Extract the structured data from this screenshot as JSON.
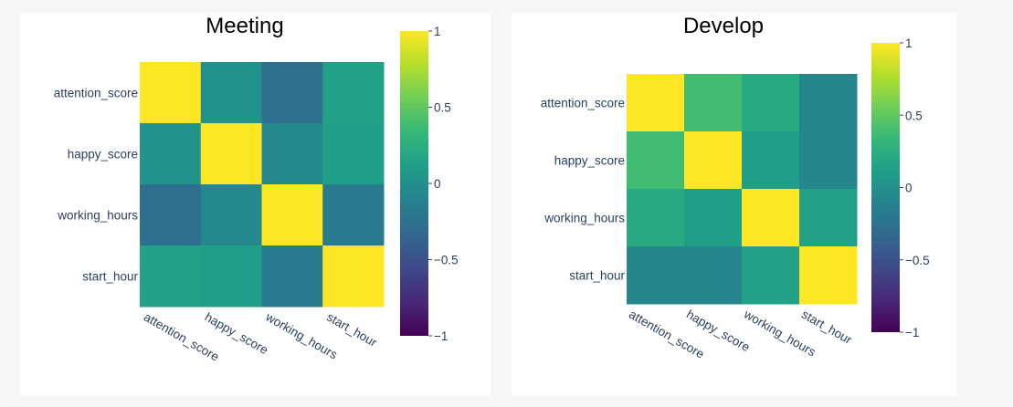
{
  "colorscale": [
    "#440154",
    "#482878",
    "#3e4989",
    "#31688e",
    "#26828e",
    "#1f9e89",
    "#35b779",
    "#6ece58",
    "#b5de2b",
    "#fde725"
  ],
  "chart_data": [
    {
      "type": "heatmap",
      "title": "Meeting",
      "categories": [
        "attention_score",
        "happy_score",
        "working_hours",
        "start_hour"
      ],
      "z": [
        [
          1.0,
          0.02,
          -0.28,
          0.14
        ],
        [
          0.02,
          1.0,
          -0.06,
          0.12
        ],
        [
          -0.28,
          -0.06,
          1.0,
          -0.18
        ],
        [
          0.14,
          0.12,
          -0.18,
          1.0
        ]
      ],
      "zlim": [
        -1,
        1
      ],
      "colorbar_ticks": [
        "1",
        "0.5",
        "0",
        "−0.5",
        "−1"
      ],
      "colorbar_values": [
        1,
        0.5,
        0,
        -0.5,
        -1
      ]
    },
    {
      "type": "heatmap",
      "title": "Develop",
      "categories": [
        "attention_score",
        "happy_score",
        "working_hours",
        "start_hour"
      ],
      "z": [
        [
          1.0,
          0.38,
          0.22,
          -0.08
        ],
        [
          0.38,
          1.0,
          0.12,
          -0.08
        ],
        [
          0.22,
          0.12,
          1.0,
          0.14
        ],
        [
          -0.08,
          -0.08,
          0.14,
          1.0
        ]
      ],
      "zlim": [
        -1,
        1
      ],
      "colorbar_ticks": [
        "1",
        "0.5",
        "0",
        "−0.5",
        "−1"
      ],
      "colorbar_values": [
        1,
        0.5,
        0,
        -0.5,
        -1
      ]
    }
  ]
}
